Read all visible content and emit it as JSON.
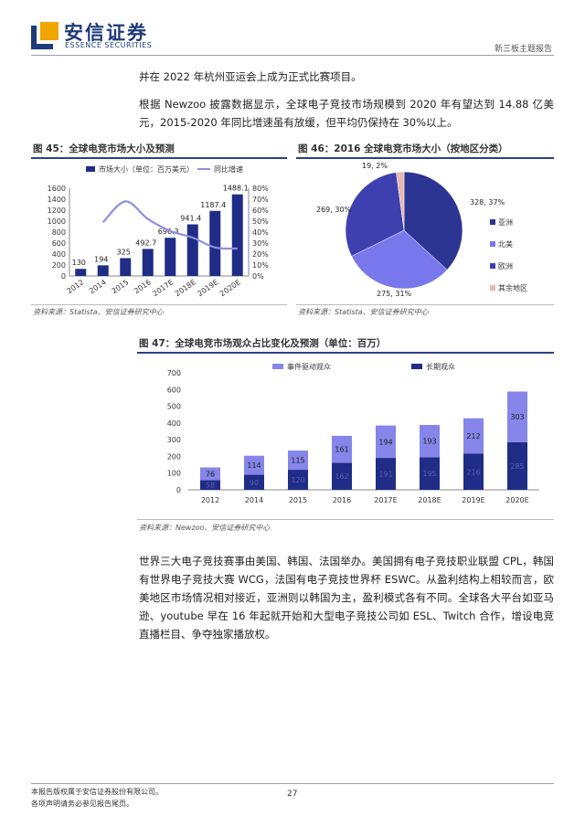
{
  "header": {
    "logo_cn": "安信证券",
    "logo_en": "ESSENCE SECURITIES",
    "report_type": "新三板主题报告"
  },
  "paragraphs": {
    "p1": "并在 2022 年杭州亚运会上成为正式比赛项目。",
    "p2": "根据 Newzoo 披露数据显示，全球电子竞技市场规模到 2020 年有望达到 14.88 亿美元，2015-2020 年同比增速虽有放缓，但平均仍保持在 30%以上。",
    "p3": "世界三大电子竞技赛事由美国、韩国、法国举办。美国拥有电子竞技职业联盟 CPL，韩国有世界电子竞技大赛 WCG，法国有电子竞技世界杯 ESWC。从盈利结构上相较而言，欧美地区市场情况相对接近，亚洲则以韩国为主，盈利模式各有不同。全球各大平台如亚马逊、youtube 早在 16 年起就开始和大型电子竞技公司如 ESL、Twitch 合作，增设电竞直播栏目、争夺独家播放权。"
  },
  "figures": {
    "fig45_title": "图 45：全球电竞市场大小及预测",
    "fig46_title": "图 46：2016 全球电竞市场大小（按地区分类）",
    "fig47_title": "图 47：全球电竞市场观众占比变化及预测（单位：百万）",
    "source1": "资料来源：Statista、安信证券研究中心",
    "source2": "资料来源：Statista、安信证券研究中心",
    "source3": "资料来源：Newzoo、安信证券研究中心"
  },
  "chart_data": [
    {
      "type": "bar",
      "categories": [
        "2012",
        "2014",
        "2015",
        "2016",
        "2017E",
        "2018E",
        "2019E",
        "2020E"
      ],
      "series": [
        {
          "name": "市场大小（单位：百万美元）",
          "values": [
            130,
            194,
            325,
            492.7,
            696.3,
            941.4,
            1187.4,
            1488.1
          ],
          "axis": "left",
          "color": "#1f2d86"
        },
        {
          "name": "同比增速",
          "values": [
            null,
            49,
            68,
            52,
            41,
            35,
            26,
            25
          ],
          "axis": "right",
          "type": "line",
          "color": "#8e8fe0"
        }
      ],
      "value_labels": [
        "130",
        "194",
        "325",
        "492.7",
        "696.3",
        "941.4",
        "1187.4",
        "1488.1"
      ],
      "ylim": [
        0,
        1600
      ],
      "yticks": [
        "0",
        "200",
        "400",
        "600",
        "800",
        "1000",
        "1200",
        "1400",
        "1600"
      ],
      "y2lim": [
        0,
        80
      ],
      "y2ticks": [
        "0%",
        "10%",
        "20%",
        "30%",
        "40%",
        "50%",
        "60%",
        "70%",
        "80%"
      ],
      "legend": "top"
    },
    {
      "type": "pie",
      "slices": [
        {
          "name": "亚洲",
          "value": 328,
          "pct": 37,
          "label": "328, 37%",
          "color": "#2c3592"
        },
        {
          "name": "北美",
          "value": 275,
          "pct": 31,
          "label": "275, 31%",
          "color": "#7878ec"
        },
        {
          "name": "欧洲",
          "value": 269,
          "pct": 30,
          "label": "269, 30%",
          "color": "#3f40b0"
        },
        {
          "name": "其余地区",
          "value": 19,
          "pct": 2,
          "label": "19, 2%",
          "color": "#e8b8b0"
        }
      ],
      "legend": "right"
    },
    {
      "type": "bar",
      "stacked": true,
      "categories": [
        "2012",
        "2014",
        "2015",
        "2016",
        "2017E",
        "2018E",
        "2019E",
        "2020E"
      ],
      "series": [
        {
          "name": "长期观众",
          "values": [
            58,
            90,
            120,
            162,
            191,
            195,
            216,
            285
          ],
          "color": "#1f2d86"
        },
        {
          "name": "事件驱动观众",
          "values": [
            76,
            114,
            115,
            161,
            194,
            193,
            212,
            303
          ],
          "color": "#8585ea"
        }
      ],
      "ylim": [
        0,
        700
      ],
      "yticks": [
        "0",
        "100",
        "200",
        "300",
        "400",
        "500",
        "600",
        "700"
      ],
      "legend": "top"
    }
  ],
  "footer": {
    "line1": "本报告版权属于安信证券股份有限公司。",
    "line2": "各项声明请务必参见报告尾页。",
    "page": "27"
  }
}
